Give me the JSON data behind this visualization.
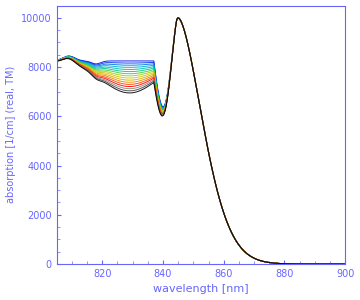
{
  "xlabel": "wavelength [nm]",
  "ylabel": "absorption [1/cm] (real, TM)",
  "xlim": [
    805,
    900
  ],
  "ylim": [
    0,
    10500
  ],
  "xticks": [
    820,
    840,
    860,
    880,
    900
  ],
  "yticks": [
    0,
    2000,
    4000,
    6000,
    8000,
    10000
  ],
  "axis_color": "#6666ff",
  "background": "#ffffff",
  "num_curves": 16,
  "colors": [
    "#0000ff",
    "#0033ee",
    "#0077dd",
    "#00aacc",
    "#00bbaa",
    "#00cc88",
    "#44cc44",
    "#aacc00",
    "#cccc00",
    "#ddaa00",
    "#ee8800",
    "#ff4400",
    "#ff0000",
    "#888888",
    "#444444",
    "#000000"
  ]
}
